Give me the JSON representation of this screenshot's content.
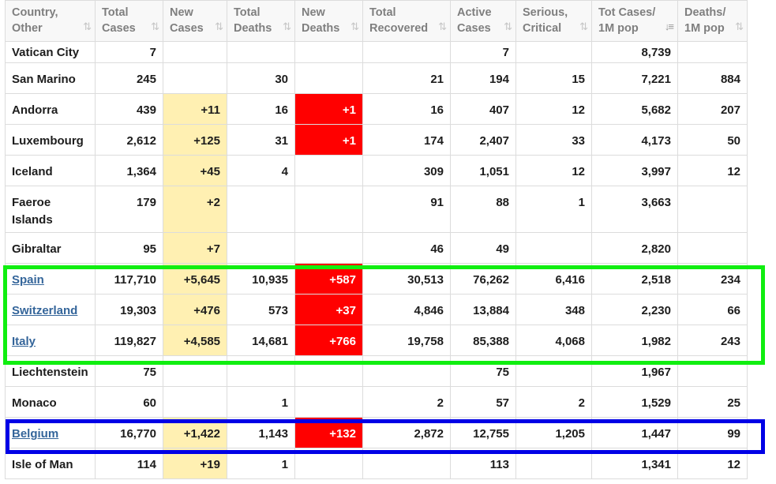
{
  "headers": [
    {
      "label": "Country,\nOther",
      "sort": "⇅",
      "sort_name": "sort-country-icon"
    },
    {
      "label": "Total\nCases",
      "sort": "⇅",
      "sort_name": "sort-total-cases-icon"
    },
    {
      "label": "New\nCases",
      "sort": "⇅",
      "sort_name": "sort-new-cases-icon"
    },
    {
      "label": "Total\nDeaths",
      "sort": "⇅",
      "sort_name": "sort-total-deaths-icon"
    },
    {
      "label": "New\nDeaths",
      "sort": "⇅",
      "sort_name": "sort-new-deaths-icon"
    },
    {
      "label": "Total\nRecovered",
      "sort": "⇅",
      "sort_name": "sort-total-recovered-icon"
    },
    {
      "label": "Active\nCases",
      "sort": "⇅",
      "sort_name": "sort-active-cases-icon"
    },
    {
      "label": "Serious,\nCritical",
      "sort": "⇅",
      "sort_name": "sort-serious-critical-icon"
    },
    {
      "label": "Tot Cases/\n1M pop",
      "sort": "↓≡",
      "sort_name": "sort-desc-icon",
      "active": true
    },
    {
      "label": "Deaths/\n1M pop",
      "sort": "⇅",
      "sort_name": "sort-deaths-per-million-icon"
    }
  ],
  "rows": [
    {
      "country": "Vatican City",
      "link": false,
      "total_cases": "7",
      "new_cases": "",
      "total_deaths": "",
      "new_deaths": "",
      "total_recovered": "",
      "active_cases": "7",
      "serious_critical": "",
      "tot_cases_per_1m": "8,739",
      "deaths_per_1m": ""
    },
    {
      "country": "San Marino",
      "link": false,
      "total_cases": "245",
      "new_cases": "",
      "total_deaths": "30",
      "new_deaths": "",
      "total_recovered": "21",
      "active_cases": "194",
      "serious_critical": "15",
      "tot_cases_per_1m": "7,221",
      "deaths_per_1m": "884"
    },
    {
      "country": "Andorra",
      "link": false,
      "total_cases": "439",
      "new_cases": "+11",
      "total_deaths": "16",
      "new_deaths": "+1",
      "total_recovered": "16",
      "active_cases": "407",
      "serious_critical": "12",
      "tot_cases_per_1m": "5,682",
      "deaths_per_1m": "207"
    },
    {
      "country": "Luxembourg",
      "link": false,
      "total_cases": "2,612",
      "new_cases": "+125",
      "total_deaths": "31",
      "new_deaths": "+1",
      "total_recovered": "174",
      "active_cases": "2,407",
      "serious_critical": "33",
      "tot_cases_per_1m": "4,173",
      "deaths_per_1m": "50"
    },
    {
      "country": "Iceland",
      "link": false,
      "total_cases": "1,364",
      "new_cases": "+45",
      "total_deaths": "4",
      "new_deaths": "",
      "total_recovered": "309",
      "active_cases": "1,051",
      "serious_critical": "12",
      "tot_cases_per_1m": "3,997",
      "deaths_per_1m": "12"
    },
    {
      "country": "Faeroe\nIslands",
      "link": false,
      "tall": true,
      "total_cases": "179",
      "new_cases": "+2",
      "total_deaths": "",
      "new_deaths": "",
      "total_recovered": "91",
      "active_cases": "88",
      "serious_critical": "1",
      "tot_cases_per_1m": "3,663",
      "deaths_per_1m": ""
    },
    {
      "country": "Gibraltar",
      "link": false,
      "total_cases": "95",
      "new_cases": "+7",
      "total_deaths": "",
      "new_deaths": "",
      "total_recovered": "46",
      "active_cases": "49",
      "serious_critical": "",
      "tot_cases_per_1m": "2,820",
      "deaths_per_1m": ""
    },
    {
      "country": "Spain",
      "link": true,
      "total_cases": "117,710",
      "new_cases": "+5,645",
      "total_deaths": "10,935",
      "new_deaths": "+587",
      "total_recovered": "30,513",
      "active_cases": "76,262",
      "serious_critical": "6,416",
      "tot_cases_per_1m": "2,518",
      "deaths_per_1m": "234"
    },
    {
      "country": "Switzerland",
      "link": true,
      "total_cases": "19,303",
      "new_cases": "+476",
      "total_deaths": "573",
      "new_deaths": "+37",
      "total_recovered": "4,846",
      "active_cases": "13,884",
      "serious_critical": "348",
      "tot_cases_per_1m": "2,230",
      "deaths_per_1m": "66"
    },
    {
      "country": "Italy",
      "link": true,
      "total_cases": "119,827",
      "new_cases": "+4,585",
      "total_deaths": "14,681",
      "new_deaths": "+766",
      "total_recovered": "19,758",
      "active_cases": "85,388",
      "serious_critical": "4,068",
      "tot_cases_per_1m": "1,982",
      "deaths_per_1m": "243"
    },
    {
      "country": "Liechtenstein",
      "link": false,
      "total_cases": "75",
      "new_cases": "",
      "total_deaths": "",
      "new_deaths": "",
      "total_recovered": "",
      "active_cases": "75",
      "serious_critical": "",
      "tot_cases_per_1m": "1,967",
      "deaths_per_1m": ""
    },
    {
      "country": "Monaco",
      "link": false,
      "total_cases": "60",
      "new_cases": "",
      "total_deaths": "1",
      "new_deaths": "",
      "total_recovered": "2",
      "active_cases": "57",
      "serious_critical": "2",
      "tot_cases_per_1m": "1,529",
      "deaths_per_1m": "25"
    },
    {
      "country": "Belgium",
      "link": true,
      "total_cases": "16,770",
      "new_cases": "+1,422",
      "total_deaths": "1,143",
      "new_deaths": "+132",
      "total_recovered": "2,872",
      "active_cases": "12,755",
      "serious_critical": "1,205",
      "tot_cases_per_1m": "1,447",
      "deaths_per_1m": "99"
    },
    {
      "country": "Isle of Man",
      "link": false,
      "total_cases": "114",
      "new_cases": "+19",
      "total_deaths": "1",
      "new_deaths": "",
      "total_recovered": "",
      "active_cases": "113",
      "serious_critical": "",
      "tot_cases_per_1m": "1,341",
      "deaths_per_1m": "12"
    }
  ],
  "highlights": [
    {
      "name": "green-highlight-box",
      "color": "#10ee10",
      "countries": [
        "Spain",
        "Switzerland",
        "Italy"
      ]
    },
    {
      "name": "blue-highlight-box",
      "color": "#0000e6",
      "countries": [
        "Belgium"
      ]
    }
  ],
  "colors": {
    "new_cases_bg": "#fff0b2",
    "new_deaths_bg": "#ff0000",
    "link": "#34659a",
    "header_text": "#7f7f7f"
  }
}
